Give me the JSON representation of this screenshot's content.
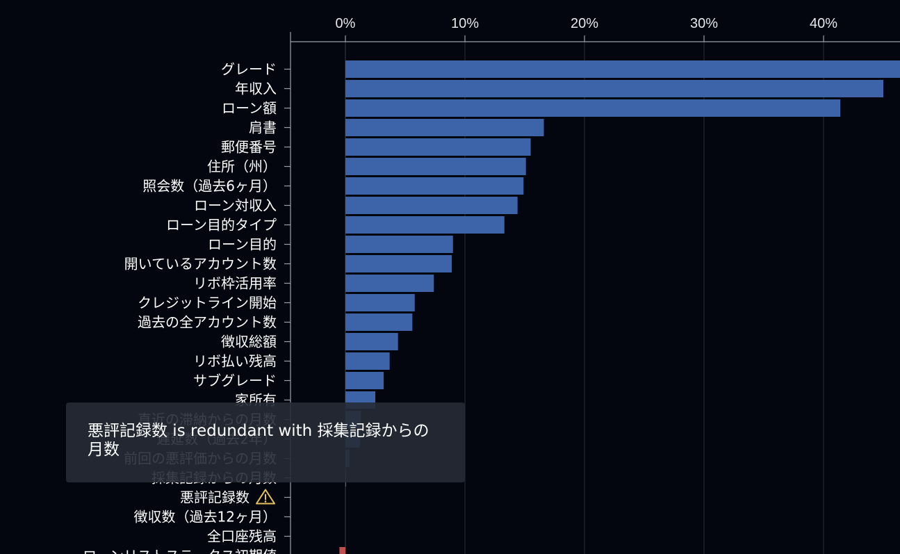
{
  "chart_data": {
    "type": "bar",
    "orientation": "horizontal",
    "x_ticks": [
      "0%",
      "10%",
      "20%",
      "30%",
      "40%"
    ],
    "x_tick_values": [
      0,
      10,
      20,
      30,
      40
    ],
    "xlim": [
      -4.6,
      46
    ],
    "grid": true,
    "categories": [
      "グレード",
      "年収入",
      "ローン額",
      "肩書",
      "郵便番号",
      "住所（州）",
      "照会数（過去6ヶ月）",
      "ローン対収入",
      "ローン目的タイプ",
      "ローン目的",
      "開いているアカウント数",
      "リボ枠活用率",
      "クレジットライン開始",
      "過去の全アカウント数",
      "徴収総額",
      "リボ払い残高",
      "サブグレード",
      "家所有",
      "直近の滞納からの月数",
      "遅延数（過去2年）",
      "前回の悪評価からの月数",
      "採集記録からの月数",
      "悪評記録数",
      "徴収数（過去12ヶ月）",
      "全口座残高",
      "ローンリストステータス初期値"
    ],
    "values": [
      46.5,
      45.0,
      41.4,
      16.6,
      15.5,
      15.1,
      14.9,
      14.4,
      13.3,
      9.0,
      8.9,
      7.4,
      5.8,
      5.6,
      4.4,
      3.7,
      3.2,
      2.5,
      1.3,
      1.2,
      0.35,
      0.05,
      0,
      0,
      0,
      -0.5
    ],
    "colors": {
      "positive": "#3d64a8",
      "negative": "#c0504d",
      "grid": "#2a2f3a",
      "axis": "#9aa0aa",
      "warning_icon": "#e8c35a"
    },
    "warning_category": "悪評記録数",
    "tooltip_text": "悪評記録数 is redundant with 採集記録からの月数"
  }
}
